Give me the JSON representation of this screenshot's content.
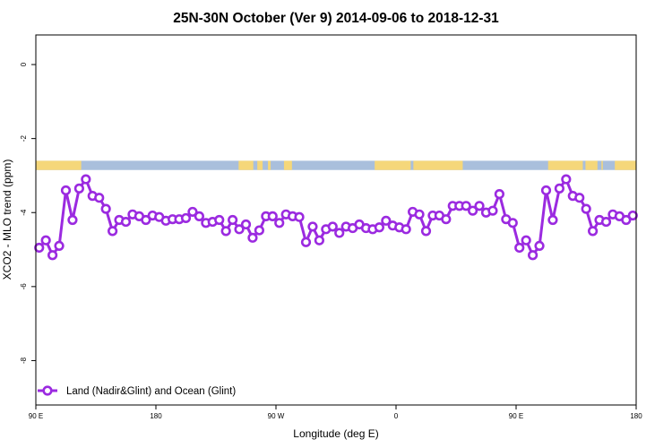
{
  "chart_data": {
    "type": "line",
    "title": "25N-30N October (Ver 9)   2014-09-06 to 2018-12-31",
    "xlabel": "Longitude (deg E)",
    "ylabel": "XCO2 - MLO trend (ppm)",
    "xlim": [
      90,
      540
    ],
    "ylim": [
      -9.2,
      0.8
    ],
    "x_ticks": [
      {
        "value": 90,
        "label": "90 E"
      },
      {
        "value": 180,
        "label": "180"
      },
      {
        "value": 270,
        "label": "90 W"
      },
      {
        "value": 360,
        "label": "0"
      },
      {
        "value": 450,
        "label": "90 E"
      },
      {
        "value": 540,
        "label": "180"
      }
    ],
    "y_ticks": [
      0,
      -2,
      -4,
      -6,
      -8
    ],
    "grid": false,
    "legend_position": "bottom-left",
    "surface_band": {
      "y_range": [
        -2.85,
        -2.6
      ],
      "land_color": "#f5d77a",
      "ocean_color": "#a9bfdc",
      "land_segments": [
        [
          90,
          124
        ],
        [
          242,
          253
        ],
        [
          256,
          260
        ],
        [
          264,
          266
        ],
        [
          276,
          282
        ],
        [
          344,
          371
        ],
        [
          373,
          410
        ],
        [
          474,
          500
        ],
        [
          502,
          511
        ],
        [
          514,
          515
        ],
        [
          524,
          540
        ]
      ]
    },
    "series": [
      {
        "name": "Land (Nadir&Glint) and Ocean (Glint)",
        "color": "#9b2ae0",
        "x": [
          92.5,
          97.5,
          102.5,
          107.5,
          112.5,
          117.5,
          122.5,
          127.5,
          132.5,
          137.5,
          142.5,
          147.5,
          152.5,
          157.5,
          162.5,
          167.5,
          172.5,
          177.5,
          182.5,
          187.5,
          192.5,
          197.5,
          202.5,
          207.5,
          212.5,
          217.5,
          222.5,
          227.5,
          232.5,
          237.5,
          242.5,
          247.5,
          252.5,
          257.5,
          262.5,
          267.5,
          272.5,
          277.5,
          282.5,
          287.5,
          292.5,
          297.5,
          302.5,
          307.5,
          312.5,
          317.5,
          322.5,
          327.5,
          332.5,
          337.5,
          342.5,
          347.5,
          352.5,
          357.5,
          362.5,
          367.5,
          372.5,
          377.5,
          382.5,
          387.5,
          392.5,
          397.5,
          402.5,
          407.5,
          412.5,
          417.5,
          422.5,
          427.5,
          432.5,
          437.5,
          442.5,
          447.5,
          452.5,
          457.5,
          462.5,
          467.5,
          472.5,
          477.5,
          482.5,
          487.5,
          492.5,
          497.5,
          502.5,
          507.5,
          512.5,
          517.5,
          522.5,
          527.5,
          532.5,
          537.5
        ],
        "y": [
          -4.95,
          -4.75,
          -5.15,
          -4.9,
          -3.4,
          -4.2,
          -3.35,
          -3.1,
          -3.55,
          -3.6,
          -3.9,
          -4.5,
          -4.2,
          -4.25,
          -4.05,
          -4.1,
          -4.2,
          -4.08,
          -4.12,
          -4.22,
          -4.18,
          -4.18,
          -4.15,
          -3.98,
          -4.1,
          -4.28,
          -4.25,
          -4.2,
          -4.5,
          -4.2,
          -4.45,
          -4.32,
          -4.68,
          -4.48,
          -4.1,
          -4.1,
          -4.28,
          -4.05,
          -4.1,
          -4.12,
          -4.8,
          -4.38,
          -4.75,
          -4.45,
          -4.38,
          -4.55,
          -4.38,
          -4.42,
          -4.32,
          -4.42,
          -4.45,
          -4.4,
          -4.22,
          -4.35,
          -4.4,
          -4.45,
          -3.98,
          -4.05,
          -4.5,
          -4.08,
          -4.08,
          -4.18,
          -3.82,
          -3.82,
          -3.82,
          -3.95,
          -3.82,
          -4.0,
          -3.95,
          -3.5,
          -4.18,
          -4.28,
          -4.95,
          -4.75,
          -5.15,
          -4.9,
          -3.4,
          -4.2,
          -3.35,
          -3.1,
          -3.55,
          -3.6,
          -3.9,
          -4.5,
          -4.2,
          -4.25,
          -4.05,
          -4.1,
          -4.2,
          -4.08
        ]
      }
    ]
  }
}
